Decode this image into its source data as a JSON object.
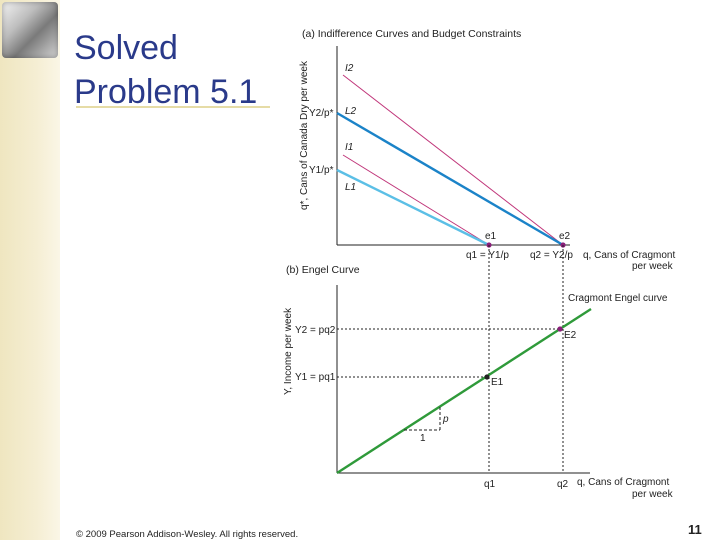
{
  "slide": {
    "title": "Solved\nProblem 5.1",
    "footer": "© 2009 Pearson Addison-Wesley. All rights reserved.",
    "page_number": "11"
  },
  "panel_a": {
    "heading": "(a) Indifference Curves and Budget Constraints",
    "y_axis_label": "q*, Cans of Canada Dry per week",
    "y_tick_upper": "Y2/p*",
    "y_tick_lower": "Y1/p*",
    "x_tick_q1": "q1 = Y1/p",
    "x_tick_q2": "q2 = Y2/p",
    "x_axis_label_line1": "q, Cans of Cragmont",
    "x_axis_label_line2": "per week",
    "label_I2": "I2",
    "label_L2": "L2",
    "label_I1": "I1",
    "label_L1": "L1",
    "label_e1": "e1",
    "label_e2": "e2"
  },
  "panel_b": {
    "heading": "(b) Engel Curve",
    "y_axis_label": "Y, Income per week",
    "y_tick_upper": "Y2 = pq2",
    "y_tick_lower": "Y1 = pq1",
    "curve_label": "Cragmont Engel curve",
    "label_E1": "E1",
    "label_E2": "E2",
    "slope_run": "1",
    "slope_rise": "p",
    "x_tick_q1": "q1",
    "x_tick_q2": "q2",
    "x_axis_label_line1": "q, Cans of Cragmont",
    "x_axis_label_line2": "per week"
  },
  "colors": {
    "title": "#2a3a8a",
    "indifference": "#c0367a",
    "budget_L2": "#1b83c8",
    "budget_L1": "#5bbfe6",
    "engel": "#2f9a3a",
    "point": "#8a1f7a"
  }
}
